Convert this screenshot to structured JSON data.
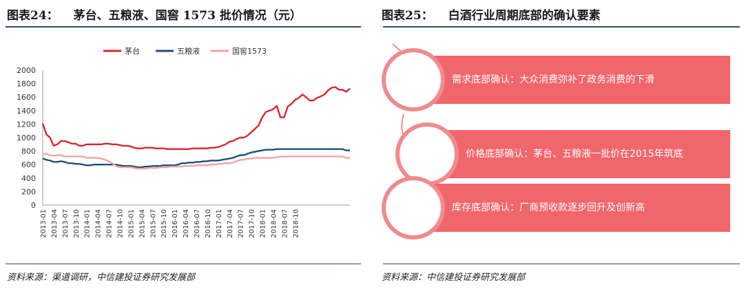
{
  "left_figure": {
    "number": "图表24：",
    "title": "茅台、五粮液、国窖 1573 批价情况（元）",
    "source": "资料来源：渠道调研，中信建投证券研究发展部"
  },
  "right_figure": {
    "number": "图表25：",
    "title": "白酒行业周期底部的确认要素",
    "source": "资料来源：中信建投证券研究发展部",
    "items": [
      {
        "text": "需求底部确认：大众消费弥补了政务消费的下滑"
      },
      {
        "text": "价格底部确认：茅台、五粮液一批价在2015年筑底"
      },
      {
        "text": "库存底部确认：厂商预收款逐步回升及创新高"
      }
    ],
    "colors": {
      "bar": "#f0666b",
      "ring": "#f08a8e",
      "circle_fill": "#ffffff"
    }
  },
  "chart_data": {
    "type": "line",
    "ylim": [
      0,
      2000
    ],
    "yticks": [
      0,
      200,
      400,
      600,
      800,
      1000,
      1200,
      1400,
      1600,
      1800,
      2000
    ],
    "xticks": [
      "2013-01",
      "2013-04",
      "2013-07",
      "2013-10",
      "2014-01",
      "2014-04",
      "2014-07",
      "2014-10",
      "2015-01",
      "2015-04",
      "2015-07",
      "2015-10",
      "2016-01",
      "2016-04",
      "2016-07",
      "2016-10",
      "2017-01",
      "2017-04",
      "2017-07",
      "2017-10",
      "2018-01",
      "2018-04",
      "2018-07",
      "2018-10"
    ],
    "x_start": "2013-01",
    "legend_position": "top",
    "grid": false,
    "series": [
      {
        "name": "茅台",
        "color": "#d9262d",
        "values": [
          1210,
          1050,
          1000,
          880,
          900,
          950,
          950,
          930,
          910,
          910,
          880,
          880,
          900,
          900,
          900,
          900,
          900,
          910,
          910,
          900,
          900,
          890,
          880,
          880,
          870,
          850,
          840,
          840,
          850,
          850,
          850,
          840,
          840,
          840,
          830,
          830,
          830,
          830,
          830,
          830,
          830,
          840,
          840,
          840,
          840,
          840,
          850,
          850,
          860,
          880,
          900,
          940,
          950,
          980,
          1000,
          1000,
          1030,
          1080,
          1130,
          1180,
          1300,
          1380,
          1400,
          1420,
          1470,
          1300,
          1300,
          1460,
          1500,
          1560,
          1590,
          1640,
          1600,
          1550,
          1550,
          1590,
          1610,
          1640,
          1700,
          1740,
          1750,
          1710,
          1710,
          1680,
          1730
        ]
      },
      {
        "name": "五粮液",
        "color": "#1f4e79",
        "values": [
          690,
          670,
          660,
          640,
          640,
          650,
          640,
          620,
          620,
          610,
          610,
          600,
          590,
          590,
          600,
          600,
          600,
          600,
          600,
          600,
          600,
          590,
          580,
          580,
          580,
          570,
          560,
          560,
          570,
          570,
          580,
          580,
          580,
          590,
          590,
          590,
          590,
          600,
          620,
          620,
          630,
          630,
          640,
          640,
          650,
          650,
          660,
          660,
          660,
          670,
          680,
          690,
          700,
          720,
          740,
          740,
          760,
          780,
          790,
          800,
          810,
          820,
          820,
          820,
          830,
          830,
          830,
          830,
          830,
          830,
          830,
          830,
          830,
          830,
          830,
          830,
          830,
          830,
          830,
          830,
          830,
          830,
          830,
          810,
          810
        ]
      },
      {
        "name": "国窖1573",
        "color": "#f3a3a3",
        "values": [
          750,
          760,
          740,
          730,
          740,
          740,
          720,
          720,
          720,
          720,
          720,
          720,
          700,
          700,
          700,
          700,
          690,
          670,
          650,
          620,
          580,
          560,
          560,
          560,
          560,
          550,
          540,
          540,
          540,
          550,
          550,
          550,
          560,
          560,
          560,
          570,
          570,
          570,
          570,
          580,
          580,
          580,
          590,
          590,
          590,
          590,
          600,
          600,
          610,
          610,
          620,
          620,
          630,
          650,
          670,
          670,
          690,
          690,
          700,
          700,
          700,
          700,
          700,
          700,
          710,
          720,
          720,
          720,
          720,
          720,
          720,
          720,
          720,
          720,
          720,
          720,
          720,
          720,
          720,
          720,
          720,
          720,
          720,
          700,
          700
        ]
      }
    ]
  }
}
